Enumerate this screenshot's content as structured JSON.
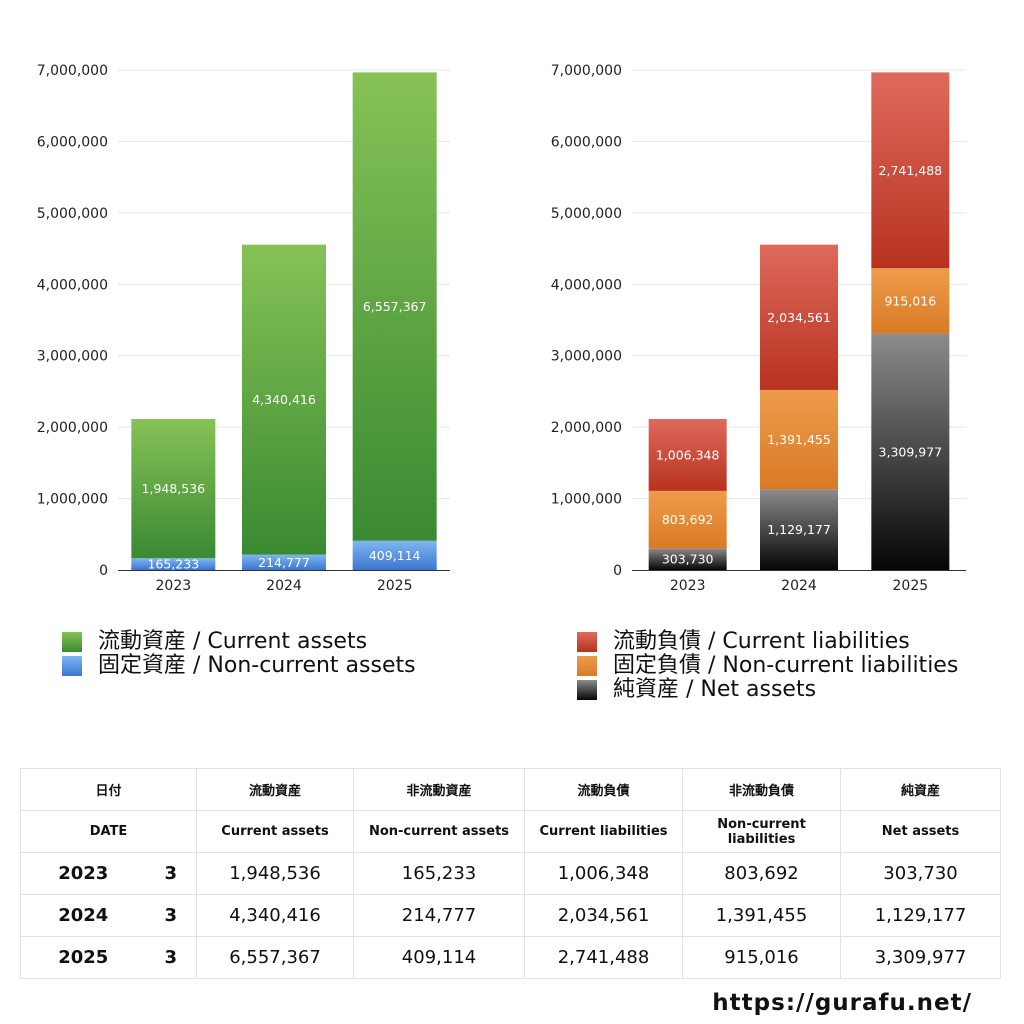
{
  "colors": {
    "current_assets": [
      "#86c256",
      "#3a8a32"
    ],
    "non_current_assets": [
      "#7fb6f2",
      "#3a76d0"
    ],
    "current_liabilities": [
      "#de6a5c",
      "#b8321f"
    ],
    "non_current_liabilities": [
      "#ee9c4a",
      "#d97a26"
    ],
    "net_assets": [
      "#8c8c8c",
      "#050505"
    ]
  },
  "chart_data": [
    {
      "type": "bar",
      "stacked": true,
      "categories": [
        "2023",
        "2024",
        "2025"
      ],
      "ylim": [
        0,
        7000000
      ],
      "y_ticks": [
        0,
        1000000,
        2000000,
        3000000,
        4000000,
        5000000,
        6000000,
        7000000
      ],
      "y_tick_labels": [
        "0",
        "1,000,000",
        "2,000,000",
        "3,000,000",
        "4,000,000",
        "5,000,000",
        "6,000,000",
        "7,000,000"
      ],
      "grid": true,
      "series": [
        {
          "name": "固定資産 / Non-current assets",
          "key": "non_current_assets",
          "values": [
            165233,
            214777,
            409114
          ],
          "labels": [
            "165,233",
            "214,777",
            "409,114"
          ]
        },
        {
          "name": "流動資産 / Current assets",
          "key": "current_assets",
          "values": [
            1948536,
            4340416,
            6557367
          ],
          "labels": [
            "1,948,536",
            "4,340,416",
            "6,557,367"
          ]
        }
      ],
      "legend": [
        {
          "name": "流動資産 / Current assets",
          "key": "current_assets"
        },
        {
          "name": "固定資産 / Non-current assets",
          "key": "non_current_assets"
        }
      ]
    },
    {
      "type": "bar",
      "stacked": true,
      "categories": [
        "2023",
        "2024",
        "2025"
      ],
      "ylim": [
        0,
        7000000
      ],
      "y_ticks": [
        0,
        1000000,
        2000000,
        3000000,
        4000000,
        5000000,
        6000000,
        7000000
      ],
      "y_tick_labels": [
        "0",
        "1,000,000",
        "2,000,000",
        "3,000,000",
        "4,000,000",
        "5,000,000",
        "6,000,000",
        "7,000,000"
      ],
      "grid": true,
      "series": [
        {
          "name": "純資産 / Net assets",
          "key": "net_assets",
          "values": [
            303730,
            1129177,
            3309977
          ],
          "labels": [
            "303,730",
            "1,129,177",
            "3,309,977"
          ]
        },
        {
          "name": "固定負債 / Non-current liabilities",
          "key": "non_current_liabilities",
          "values": [
            803692,
            1391455,
            915016
          ],
          "labels": [
            "803,692",
            "1,391,455",
            "915,016"
          ]
        },
        {
          "name": "流動負債 / Current liabilities",
          "key": "current_liabilities",
          "values": [
            1006348,
            2034561,
            2741488
          ],
          "labels": [
            "1,006,348",
            "2,034,561",
            "2,741,488"
          ]
        }
      ],
      "legend": [
        {
          "name": "流動負債 / Current liabilities",
          "key": "current_liabilities"
        },
        {
          "name": "固定負債 / Non-current liabilities",
          "key": "non_current_liabilities"
        },
        {
          "name": "純資産 / Net assets",
          "key": "net_assets"
        }
      ]
    }
  ],
  "table": {
    "header_jp": [
      "日付",
      "",
      "流動資産",
      "非流動資産",
      "流動負債",
      "非流動負債",
      "純資産"
    ],
    "header_en": [
      "DATE",
      "",
      "Current assets",
      "Non-current assets",
      "Current liabilities",
      "Non-current liabilities",
      "Net assets"
    ],
    "rows": [
      [
        "2023",
        "3",
        "1,948,536",
        "165,233",
        "1,006,348",
        "803,692",
        "303,730"
      ],
      [
        "2024",
        "3",
        "4,340,416",
        "214,777",
        "2,034,561",
        "1,391,455",
        "1,129,177"
      ],
      [
        "2025",
        "3",
        "6,557,367",
        "409,114",
        "2,741,488",
        "915,016",
        "3,309,977"
      ]
    ]
  },
  "footer": {
    "url": "https://gurafu.net/"
  }
}
